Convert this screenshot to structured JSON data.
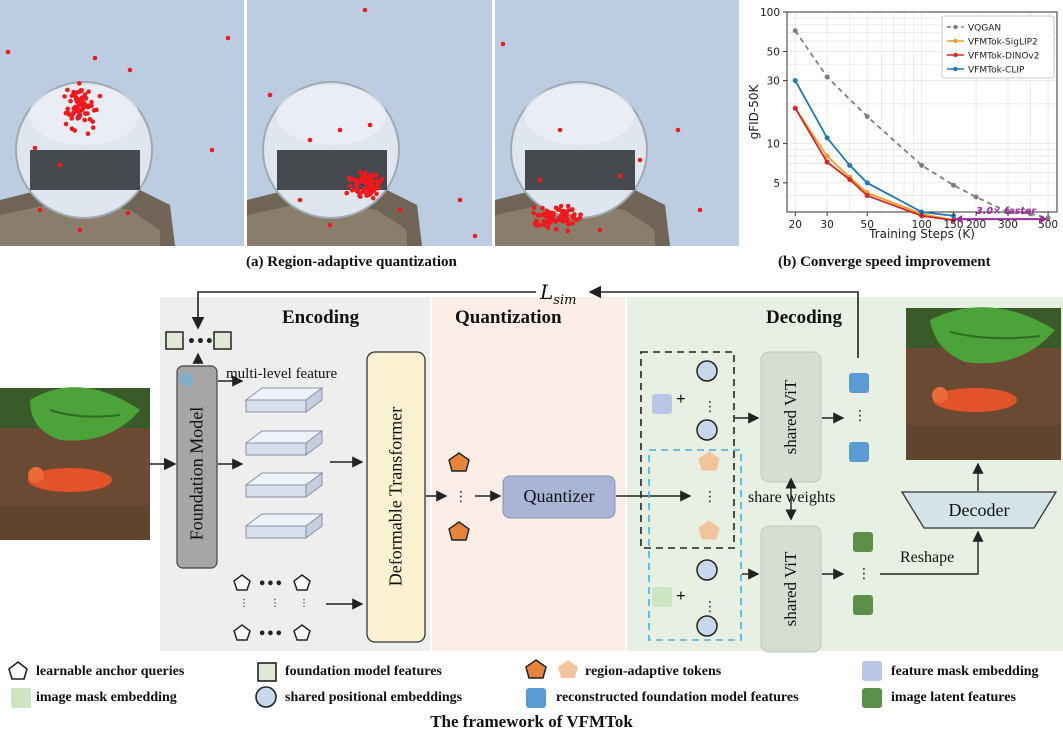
{
  "top_panels": {
    "caption_a": "(a) Region-adaptive quantization",
    "caption_b": "(b) Converge speed improvement"
  },
  "chart_data": {
    "type": "line",
    "xlabel": "Training Steps (K)",
    "ylabel": "gFID-50K",
    "x_scale": "log",
    "y_scale": "log",
    "xlim": [
      18,
      560
    ],
    "ylim": [
      3,
      100
    ],
    "x_ticks": [
      20,
      30,
      50,
      100,
      150,
      200,
      300,
      500
    ],
    "y_ticks": [
      5,
      10,
      30,
      50,
      100
    ],
    "grid": true,
    "legend_position": "top-right",
    "annotation": "3.0× faster",
    "annotation_color": "#9b2a9f",
    "series": [
      {
        "name": "VQGAN",
        "color": "#7f7f7f",
        "dashed": true,
        "x": [
          20,
          30,
          50,
          100,
          150,
          200,
          300,
          400,
          500
        ],
        "y": [
          72,
          32,
          16,
          6.8,
          4.8,
          3.9,
          3.0,
          2.9,
          2.7
        ]
      },
      {
        "name": "VFMTok-SigLIP2",
        "color": "#f39c2a",
        "dashed": false,
        "x": [
          20,
          30,
          40,
          50,
          100,
          150
        ],
        "y": [
          18.5,
          8.0,
          5.5,
          4.2,
          2.9,
          2.6
        ]
      },
      {
        "name": "VFMTok-DINOv2",
        "color": "#d62728",
        "dashed": false,
        "x": [
          20,
          30,
          40,
          50,
          100,
          150
        ],
        "y": [
          18.5,
          7.2,
          5.3,
          4.0,
          2.8,
          2.6
        ]
      },
      {
        "name": "VFMTok-CLIP",
        "color": "#1f77b4",
        "dashed": false,
        "x": [
          20,
          30,
          40,
          50,
          100,
          150
        ],
        "y": [
          30,
          11,
          6.8,
          5.0,
          3.0,
          2.8
        ]
      }
    ]
  },
  "framework": {
    "lsim": "L",
    "lsim_sub": "sim",
    "encoding_title": "Encoding",
    "quantization_title": "Quantization",
    "decoding_title": "Decoding",
    "foundation_model": "Foundation Model",
    "multi_level_feature": "multi-level feature",
    "deformable_transformer": "Deformable Transformer",
    "quantizer": "Quantizer",
    "shared_vit_top": "shared ViT",
    "shared_vit_bottom": "shared ViT",
    "share_weights": "share weights",
    "reshape": "Reshape",
    "decoder": "Decoder",
    "snowflake": "❄",
    "plus_top": "+",
    "plus_bottom": "+"
  },
  "legend": {
    "anchor_queries": "learnable anchor queries",
    "foundation_features": "foundation model features",
    "region_tokens": "region-adaptive tokens",
    "feature_mask": "feature mask embedding",
    "image_mask": "image mask embedding",
    "positional": "shared positional embeddings",
    "reconstructed": "reconstructed foundation model features",
    "latent": "image latent features"
  },
  "footer": {
    "title": "The framework of VFMTok"
  },
  "colors": {
    "encoding_bg": "#eeeeee",
    "quantization_bg": "#fbeee6",
    "decoding_bg": "#e8efe3",
    "foundation_green": "#dfe9d6",
    "token_orange": "#e8853d",
    "token_light_orange": "#f2c49c",
    "positional_blue": "#c7d8ea",
    "reconstructed_blue": "#5a9bd4",
    "latent_green": "#5b8f4a",
    "feature_mask": "#b9c6e6",
    "image_mask": "#cde6c2",
    "quantizer_fill": "#a9b5d6",
    "deformable_fill": "#fbf2d2",
    "decoder_fill": "#d4e3e8"
  }
}
